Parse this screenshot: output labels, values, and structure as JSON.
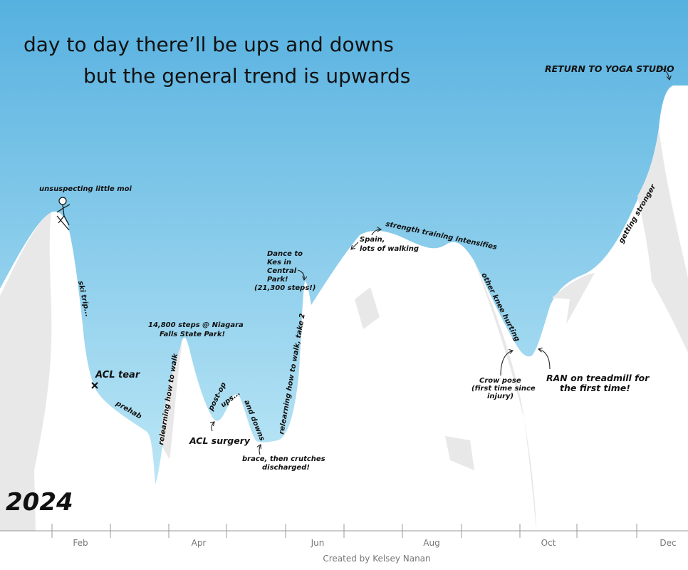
{
  "chart_data": {
    "type": "area",
    "title_line1": "day to day there’ll be ups and downs",
    "title_line2": "but the general trend is upwards",
    "year_label": "2024",
    "credit": "Created by Kelsey Nanan",
    "month_labels": [
      "Feb",
      "Apr",
      "Jun",
      "Aug",
      "Oct",
      "Dec"
    ],
    "colors": {
      "sky_top": "#56b1e0",
      "sky_bottom": "#c6ecf8",
      "mountain": "#e8e8e8",
      "axis": "#999999",
      "text": "#111111"
    },
    "annotations": {
      "moi": "unsuspecting little moi",
      "ski": "ski trip...",
      "acl_tear": "ACL tear",
      "prehab": "prehab",
      "relearn1": "relearning how to walk",
      "niagara1": "14,800 steps @ Niagara",
      "niagara2": "Falls State Park!",
      "postop1": "post-op",
      "postop2": "ups...",
      "anddowns": "and downs",
      "surgery": "ACL surgery",
      "brace1": "brace, then crutches",
      "brace2": "discharged!",
      "relearn2": "relearning how to walk, take 2",
      "dance1": "Dance to",
      "dance2": "Kes in",
      "dance3": "Central",
      "dance4": "Park!",
      "dance5": "(21,300 steps!)",
      "spain1": "Spain,",
      "spain2": "lots of walking",
      "strength": "strength training intensifies",
      "knee": "other knee hurting",
      "crow1": "Crow pose",
      "crow2": "(first time since",
      "crow3": "injury)",
      "ran1": "RAN on treadmill for",
      "ran2": "the first time!",
      "stronger": "getting stronger",
      "yoga": "RETURN TO YOGA STUDIO"
    }
  }
}
